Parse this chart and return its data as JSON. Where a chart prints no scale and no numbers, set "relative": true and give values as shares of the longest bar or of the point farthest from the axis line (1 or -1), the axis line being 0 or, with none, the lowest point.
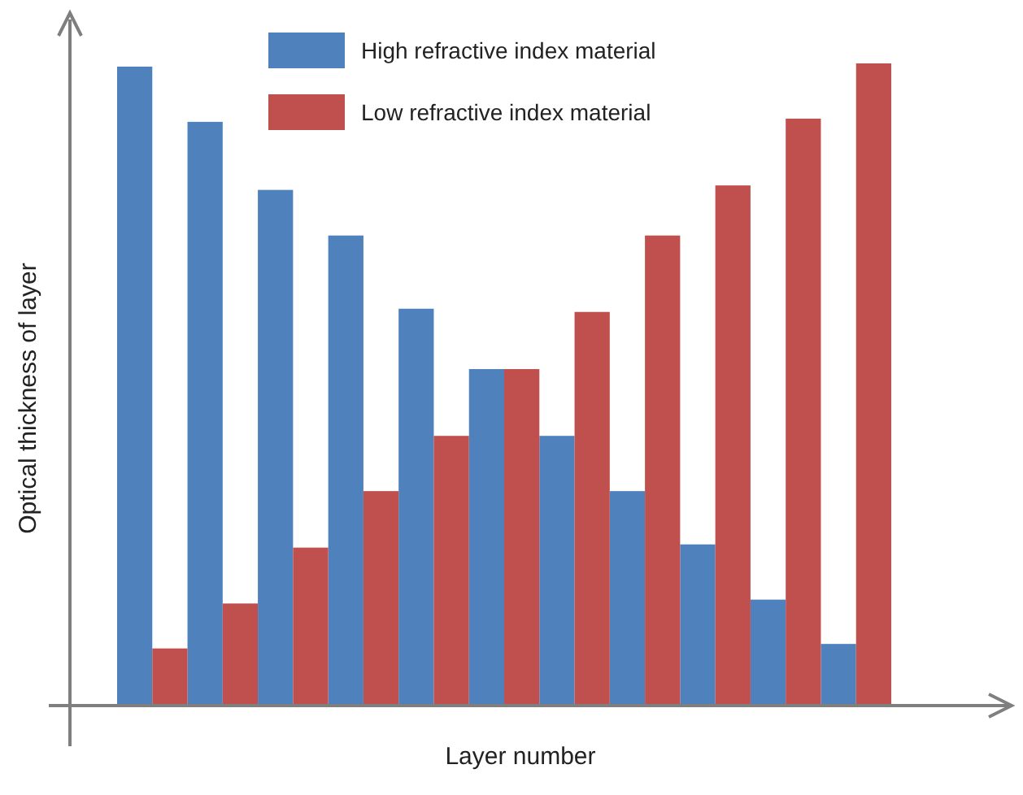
{
  "chart_data": {
    "type": "bar",
    "relative": true,
    "xlabel": "Layer number",
    "ylabel": "Optical thickness of layer",
    "legend": "top",
    "categories": [
      null,
      null,
      null,
      null,
      null,
      null,
      null,
      null,
      null,
      null,
      null
    ],
    "series": [
      {
        "name": "High refractive index material",
        "color": "#4f81bd",
        "values": [
          0.995,
          0.909,
          0.803,
          0.732,
          0.618,
          0.524,
          0.42,
          0.334,
          0.251,
          0.165,
          0.096
        ]
      },
      {
        "name": "Low refractive index material",
        "color": "#c0504d",
        "values": [
          0.089,
          0.159,
          0.246,
          0.334,
          0.42,
          0.524,
          0.613,
          0.732,
          0.81,
          0.914,
          1.0
        ]
      }
    ]
  }
}
